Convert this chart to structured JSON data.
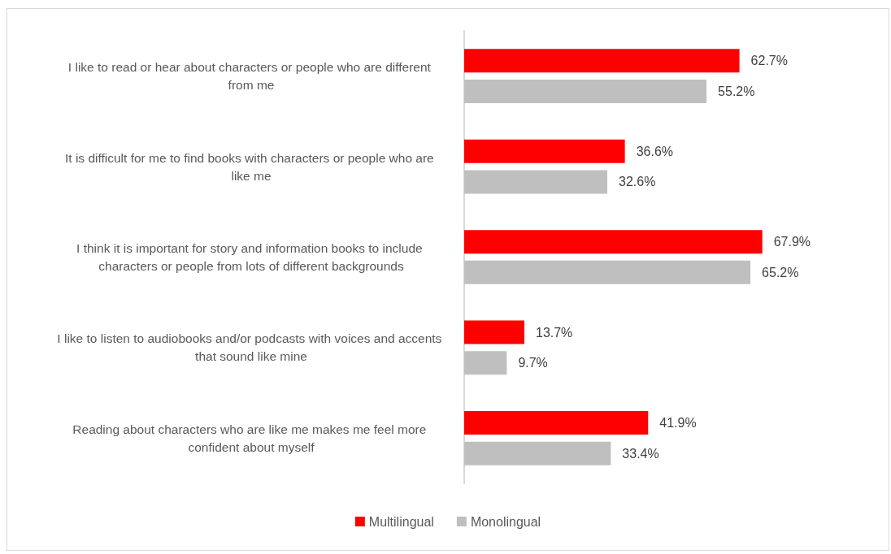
{
  "chart_data": {
    "type": "bar",
    "orientation": "horizontal",
    "legend": "bottom",
    "categories": [
      "I like to read or hear about characters or people who are different from me",
      "It is difficult for me to find books with characters or people who are like me",
      "I think it is important for story and information books to include characters or people from lots of different backgrounds",
      "I like to listen to audiobooks and/or podcasts with voices and accents that sound like mine",
      "Reading about characters who are like me makes me feel more confident about myself"
    ],
    "series": [
      {
        "name": "Multilingual",
        "color": "#ff0000",
        "values": [
          62.7,
          36.6,
          67.9,
          13.7,
          41.9
        ],
        "value_labels": [
          "62.7%",
          "36.6%",
          "67.9%",
          "13.7%",
          "41.9%"
        ]
      },
      {
        "name": "Monolingual",
        "color": "#bfbfbf",
        "values": [
          55.2,
          32.6,
          65.2,
          9.7,
          33.4
        ],
        "value_labels": [
          "55.2%",
          "32.6%",
          "65.2%",
          "9.7%",
          "33.4%"
        ]
      }
    ]
  }
}
